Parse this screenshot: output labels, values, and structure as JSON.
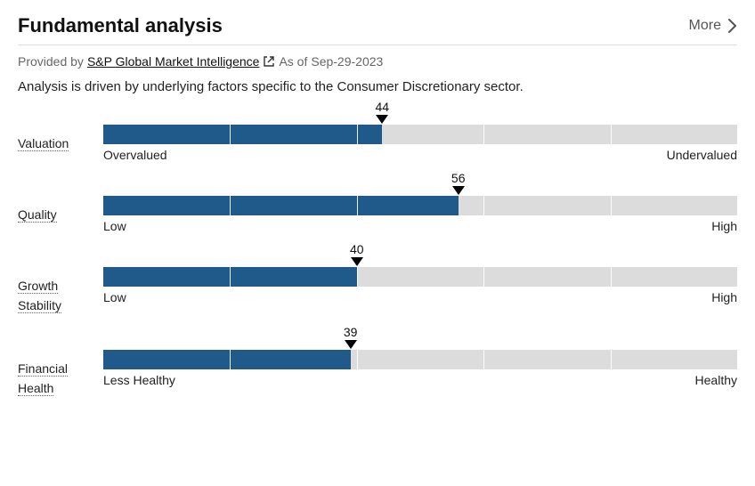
{
  "header": {
    "title": "Fundamental analysis",
    "more_label": "More"
  },
  "provider": {
    "prefix": "Provided by",
    "name": "S&P Global Market Intelligence",
    "as_of_prefix": "As of",
    "as_of_date": "Sep-29-2023"
  },
  "description": "Analysis is driven by underlying factors specific to the Consumer Discretionary sector.",
  "chart": {
    "segments": 5,
    "bar_color": "#1f5a8a",
    "track_color": "#dcdcdc",
    "marker_color": "#000000",
    "segment_line_color": "#ffffff"
  },
  "metrics": [
    {
      "label_lines": [
        "Valuation"
      ],
      "value": 44,
      "low_label": "Overvalued",
      "high_label": "Undervalued"
    },
    {
      "label_lines": [
        "Quality"
      ],
      "value": 56,
      "low_label": "Low",
      "high_label": "High"
    },
    {
      "label_lines": [
        "Growth",
        "Stability"
      ],
      "value": 40,
      "low_label": "Low",
      "high_label": "High"
    },
    {
      "label_lines": [
        "Financial",
        "Health"
      ],
      "value": 39,
      "low_label": "Less Healthy",
      "high_label": "Healthy"
    }
  ]
}
